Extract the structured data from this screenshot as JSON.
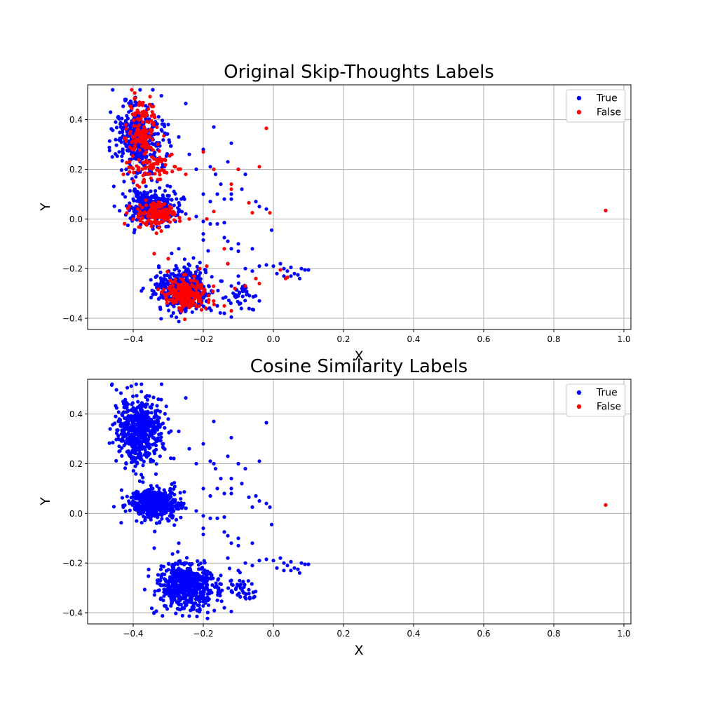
{
  "chart_data": [
    {
      "type": "scatter",
      "title": "Original Skip-Thoughts Labels",
      "xlabel": "X",
      "ylabel": "Y",
      "xlim": [
        -0.53,
        1.02
      ],
      "ylim": [
        -0.445,
        0.54
      ],
      "xticks": [
        -0.4,
        -0.2,
        0.0,
        0.2,
        0.4,
        0.6,
        0.8,
        1.0
      ],
      "xtick_labels": [
        "−0.4",
        "−0.2",
        "0.0",
        "0.2",
        "0.4",
        "0.6",
        "0.8",
        "1.0"
      ],
      "yticks": [
        -0.4,
        -0.2,
        0.0,
        0.2,
        0.4
      ],
      "ytick_labels": [
        "−0.4",
        "−0.2",
        "0.0",
        "0.2",
        "0.4"
      ],
      "grid": true,
      "legend_position": "top-right",
      "series": [
        {
          "name": "True",
          "color": "#0000ff",
          "clusters": [
            {
              "center": [
                -0.385,
                0.33
              ],
              "spread": [
                0.035,
                0.07
              ],
              "count": 380
            },
            {
              "center": [
                -0.345,
                0.05
              ],
              "spread": [
                0.035,
                0.035
              ],
              "count": 320
            },
            {
              "center": [
                -0.255,
                -0.28
              ],
              "spread": [
                0.04,
                0.045
              ],
              "count": 420
            },
            {
              "center": [
                -0.09,
                -0.31
              ],
              "spread": [
                0.025,
                0.03
              ],
              "count": 40
            }
          ],
          "points": [
            [
              -0.45,
              0.39
            ],
            [
              -0.43,
              0.36
            ],
            [
              -0.44,
              0.27
            ],
            [
              -0.41,
              0.24
            ],
            [
              -0.42,
              0.2
            ],
            [
              -0.41,
              0.04
            ],
            [
              -0.4,
              0.08
            ],
            [
              -0.35,
              0.08
            ],
            [
              -0.25,
              0.465
            ],
            [
              -0.17,
              0.37
            ],
            [
              -0.12,
              0.305
            ],
            [
              -0.3,
              0.38
            ],
            [
              -0.27,
              0.33
            ],
            [
              -0.24,
              0.26
            ],
            [
              -0.2,
              0.28
            ],
            [
              -0.22,
              0.2
            ],
            [
              -0.18,
              0.21
            ],
            [
              -0.165,
              0.18
            ],
            [
              -0.13,
              0.23
            ],
            [
              -0.1,
              0.2
            ],
            [
              -0.08,
              0.18
            ],
            [
              -0.15,
              0.14
            ],
            [
              -0.16,
              0.1
            ],
            [
              -0.12,
              0.1
            ],
            [
              -0.09,
              0.12
            ],
            [
              -0.2,
              0.1
            ],
            [
              -0.18,
              0.07
            ],
            [
              -0.14,
              0.08
            ],
            [
              -0.05,
              0.07
            ],
            [
              -0.04,
              0.05
            ],
            [
              -0.02,
              0.04
            ],
            [
              -0.005,
              -0.045
            ],
            [
              -0.12,
              0.08
            ],
            [
              -0.3,
              -0.03
            ],
            [
              -0.27,
              0.03
            ],
            [
              -0.25,
              0.02
            ],
            [
              -0.22,
              0.01
            ],
            [
              -0.2,
              -0.01
            ],
            [
              -0.18,
              -0.02
            ],
            [
              -0.16,
              -0.02
            ],
            [
              -0.14,
              -0.015
            ],
            [
              -0.2,
              -0.06
            ],
            [
              -0.2,
              -0.085
            ],
            [
              -0.14,
              -0.075
            ],
            [
              -0.12,
              -0.12
            ],
            [
              -0.13,
              -0.09
            ],
            [
              -0.1,
              -0.1
            ],
            [
              -0.1,
              -0.13
            ],
            [
              -0.06,
              -0.12
            ],
            [
              -0.27,
              -0.12
            ],
            [
              -0.34,
              -0.14
            ],
            [
              -0.13,
              -0.18
            ],
            [
              -0.1,
              -0.23
            ],
            [
              -0.08,
              -0.2
            ],
            [
              -0.06,
              -0.21
            ],
            [
              -0.04,
              -0.19
            ],
            [
              -0.02,
              -0.185
            ],
            [
              0.0,
              -0.19
            ],
            [
              0.02,
              -0.18
            ],
            [
              0.03,
              -0.2
            ],
            [
              0.04,
              -0.21
            ],
            [
              0.05,
              -0.195
            ],
            [
              0.06,
              -0.22
            ],
            [
              0.07,
              -0.225
            ],
            [
              0.08,
              -0.2
            ],
            [
              0.09,
              -0.205
            ],
            [
              0.1,
              -0.205
            ],
            [
              0.03,
              -0.23
            ],
            [
              0.05,
              -0.23
            ],
            [
              0.075,
              -0.24
            ],
            [
              0.01,
              -0.22
            ],
            [
              -0.14,
              -0.38
            ],
            [
              -0.12,
              -0.395
            ],
            [
              -0.16,
              -0.35
            ],
            [
              -0.15,
              -0.25
            ],
            [
              -0.12,
              -0.27
            ]
          ]
        },
        {
          "name": "False",
          "color": "#ff0000",
          "clusters": [
            {
              "center": [
                -0.375,
                0.34
              ],
              "spread": [
                0.022,
                0.07
              ],
              "count": 160
            },
            {
              "center": [
                -0.345,
                0.2
              ],
              "spread": [
                0.03,
                0.03
              ],
              "count": 60
            },
            {
              "center": [
                -0.33,
                0.02
              ],
              "spread": [
                0.03,
                0.025
              ],
              "count": 150
            },
            {
              "center": [
                -0.25,
                -0.3
              ],
              "spread": [
                0.03,
                0.03
              ],
              "count": 220
            }
          ],
          "points": [
            [
              -0.02,
              0.365
            ],
            [
              -0.04,
              0.21
            ],
            [
              -0.07,
              0.065
            ],
            [
              -0.06,
              0.025
            ],
            [
              -0.01,
              0.025
            ],
            [
              -0.12,
              0.14
            ],
            [
              -0.12,
              0.12
            ],
            [
              -0.1,
              0.2
            ],
            [
              -0.17,
              0.2
            ],
            [
              -0.2,
              0.27
            ],
            [
              -0.29,
              0.26
            ],
            [
              -0.31,
              0.24
            ],
            [
              -0.25,
              0.18
            ],
            [
              -0.28,
              0.21
            ],
            [
              -0.13,
              -0.18
            ],
            [
              -0.14,
              -0.12
            ],
            [
              -0.19,
              -0.19
            ],
            [
              -0.21,
              -0.2
            ],
            [
              -0.12,
              -0.37
            ],
            [
              -0.14,
              -0.35
            ],
            [
              -0.11,
              -0.28
            ],
            [
              -0.08,
              -0.27
            ],
            [
              -0.05,
              -0.24
            ],
            [
              -0.04,
              -0.26
            ],
            [
              0.02,
              -0.205
            ],
            [
              0.04,
              -0.235
            ],
            [
              0.035,
              -0.24
            ],
            [
              -0.34,
              -0.14
            ],
            [
              -0.3,
              -0.16
            ],
            [
              -0.19,
              0.0
            ],
            [
              -0.17,
              0.03
            ],
            [
              -0.24,
              0.0
            ]
          ]
        },
        {
          "name": "True",
          "color": "#0000ff",
          "points": [
            [
              0.948,
              0.034
            ]
          ]
        },
        {
          "name": "False",
          "color": "#ff0000",
          "points": [
            [
              0.948,
              0.034
            ]
          ]
        }
      ]
    },
    {
      "type": "scatter",
      "title": "Cosine Similarity Labels",
      "xlabel": "X",
      "ylabel": "Y",
      "xlim": [
        -0.53,
        1.02
      ],
      "ylim": [
        -0.445,
        0.54
      ],
      "xticks": [
        -0.4,
        -0.2,
        0.0,
        0.2,
        0.4,
        0.6,
        0.8,
        1.0
      ],
      "xtick_labels": [
        "−0.4",
        "−0.2",
        "0.0",
        "0.2",
        "0.4",
        "0.6",
        "0.8",
        "1.0"
      ],
      "yticks": [
        -0.4,
        -0.2,
        0.0,
        0.2,
        0.4
      ],
      "ytick_labels": [
        "−0.4",
        "−0.2",
        "0.0",
        "0.2",
        "0.4"
      ],
      "grid": true,
      "legend_position": "top-right",
      "series": [
        {
          "name": "True",
          "color": "#0000ff",
          "clusters": [
            {
              "center": [
                -0.38,
                0.33
              ],
              "spread": [
                0.035,
                0.07
              ],
              "count": 520
            },
            {
              "center": [
                -0.34,
                0.04
              ],
              "spread": [
                0.035,
                0.03
              ],
              "count": 450
            },
            {
              "center": [
                -0.25,
                -0.29
              ],
              "spread": [
                0.04,
                0.045
              ],
              "count": 600
            },
            {
              "center": [
                -0.09,
                -0.31
              ],
              "spread": [
                0.025,
                0.03
              ],
              "count": 40
            }
          ],
          "points": [
            [
              -0.45,
              0.39
            ],
            [
              -0.43,
              0.36
            ],
            [
              -0.44,
              0.27
            ],
            [
              -0.41,
              0.24
            ],
            [
              -0.42,
              0.2
            ],
            [
              -0.41,
              0.04
            ],
            [
              -0.4,
              0.08
            ],
            [
              -0.35,
              0.08
            ],
            [
              -0.25,
              0.465
            ],
            [
              -0.17,
              0.37
            ],
            [
              -0.12,
              0.305
            ],
            [
              -0.3,
              0.38
            ],
            [
              -0.27,
              0.33
            ],
            [
              -0.24,
              0.26
            ],
            [
              -0.2,
              0.28
            ],
            [
              -0.22,
              0.2
            ],
            [
              -0.18,
              0.21
            ],
            [
              -0.165,
              0.18
            ],
            [
              -0.13,
              0.23
            ],
            [
              -0.1,
              0.2
            ],
            [
              -0.08,
              0.18
            ],
            [
              -0.15,
              0.14
            ],
            [
              -0.16,
              0.1
            ],
            [
              -0.12,
              0.1
            ],
            [
              -0.09,
              0.12
            ],
            [
              -0.2,
              0.1
            ],
            [
              -0.18,
              0.07
            ],
            [
              -0.14,
              0.08
            ],
            [
              -0.05,
              0.07
            ],
            [
              -0.04,
              0.05
            ],
            [
              -0.02,
              0.04
            ],
            [
              -0.005,
              -0.045
            ],
            [
              -0.12,
              0.08
            ],
            [
              -0.3,
              -0.03
            ],
            [
              -0.27,
              0.03
            ],
            [
              -0.25,
              0.02
            ],
            [
              -0.22,
              0.01
            ],
            [
              -0.2,
              -0.01
            ],
            [
              -0.18,
              -0.02
            ],
            [
              -0.16,
              -0.02
            ],
            [
              -0.14,
              -0.015
            ],
            [
              -0.2,
              -0.06
            ],
            [
              -0.2,
              -0.085
            ],
            [
              -0.14,
              -0.075
            ],
            [
              -0.12,
              -0.12
            ],
            [
              -0.13,
              -0.09
            ],
            [
              -0.1,
              -0.1
            ],
            [
              -0.1,
              -0.13
            ],
            [
              -0.06,
              -0.12
            ],
            [
              -0.27,
              -0.12
            ],
            [
              -0.34,
              -0.14
            ],
            [
              -0.13,
              -0.18
            ],
            [
              -0.1,
              -0.23
            ],
            [
              -0.08,
              -0.2
            ],
            [
              -0.06,
              -0.21
            ],
            [
              -0.04,
              -0.19
            ],
            [
              -0.02,
              -0.185
            ],
            [
              0.0,
              -0.19
            ],
            [
              0.02,
              -0.18
            ],
            [
              0.03,
              -0.2
            ],
            [
              0.04,
              -0.21
            ],
            [
              0.05,
              -0.195
            ],
            [
              0.06,
              -0.22
            ],
            [
              0.07,
              -0.225
            ],
            [
              0.08,
              -0.2
            ],
            [
              0.09,
              -0.205
            ],
            [
              0.1,
              -0.205
            ],
            [
              0.03,
              -0.23
            ],
            [
              0.05,
              -0.23
            ],
            [
              0.075,
              -0.24
            ],
            [
              0.01,
              -0.22
            ],
            [
              -0.14,
              -0.38
            ],
            [
              -0.12,
              -0.395
            ],
            [
              -0.16,
              -0.35
            ],
            [
              -0.15,
              -0.25
            ],
            [
              -0.12,
              -0.27
            ],
            [
              -0.02,
              0.365
            ],
            [
              -0.04,
              0.21
            ],
            [
              -0.07,
              0.065
            ],
            [
              -0.06,
              0.025
            ],
            [
              -0.01,
              0.025
            ],
            [
              -0.12,
              0.14
            ],
            [
              -0.1,
              0.2
            ],
            [
              -0.17,
              0.2
            ]
          ]
        },
        {
          "name": "True",
          "color": "#0000ff",
          "points": [
            [
              0.948,
              0.034
            ]
          ]
        },
        {
          "name": "False",
          "color": "#ff0000",
          "points": [
            [
              0.948,
              0.034
            ]
          ]
        }
      ]
    }
  ]
}
